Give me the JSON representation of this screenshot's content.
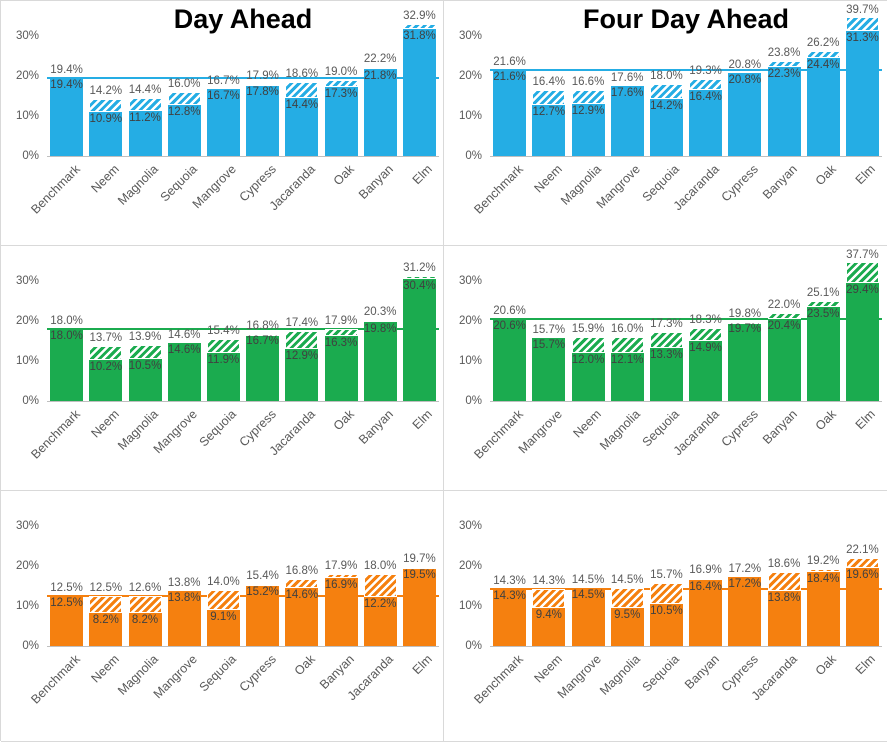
{
  "colors": {
    "blue": "#25ADE4",
    "green": "#1BAB4F",
    "orange": "#F5800F",
    "label_outside": "#595959",
    "label_inside": "#404040",
    "axis_line": "#bfbfbf",
    "panel_border": "#d9d9d9",
    "title_text": "#000000"
  },
  "chart_data": [
    {
      "type": "bar",
      "position": "top-left",
      "title": "Day Ahead",
      "color": "#25ADE4",
      "categories": [
        "Benchmark",
        "Neem",
        "Magnolia",
        "Sequoia",
        "Mangrove",
        "Cypress",
        "Jacaranda",
        "Oak",
        "Banyan",
        "Elm"
      ],
      "series": [
        {
          "name": "solid",
          "values": [
            19.4,
            10.9,
            11.2,
            12.8,
            16.7,
            17.8,
            14.4,
            17.3,
            21.8,
            31.8
          ]
        },
        {
          "name": "hatched-total",
          "values": [
            19.4,
            14.2,
            14.4,
            16.0,
            16.7,
            17.9,
            18.6,
            19.0,
            22.2,
            32.9
          ]
        }
      ],
      "total_labels": [
        "19.4%",
        "14.2%",
        "14.4%",
        "16.0%",
        "16.7%",
        "17.9%",
        "18.6%",
        "19.0%",
        "22.2%",
        "32.9%"
      ],
      "solid_labels": [
        "19.4%",
        "10.9%",
        "11.2%",
        "12.8%",
        "16.7%",
        "17.8%",
        "14.4%",
        "17.3%",
        "21.8%",
        "31.8%"
      ],
      "benchmark_line": 19.4,
      "y_axis": {
        "ticks": [
          0,
          10,
          20,
          30
        ],
        "tick_labels": [
          "0%",
          "10%",
          "20%",
          "30%"
        ],
        "max": 34.5,
        "grid": false
      },
      "legend": null
    },
    {
      "type": "bar",
      "position": "top-right",
      "title": "Four Day Ahead",
      "color": "#25ADE4",
      "categories": [
        "Benchmark",
        "Neem",
        "Magnolia",
        "Mangrove",
        "Sequoia",
        "Jacaranda",
        "Cypress",
        "Banyan",
        "Oak",
        "Elm"
      ],
      "series": [
        {
          "name": "solid",
          "values": [
            21.6,
            12.7,
            12.9,
            17.6,
            14.2,
            16.4,
            20.8,
            22.3,
            24.4,
            31.3
          ]
        },
        {
          "name": "hatched-total",
          "values": [
            21.6,
            16.4,
            16.6,
            17.6,
            18.0,
            19.3,
            20.8,
            23.8,
            26.2,
            39.7
          ]
        }
      ],
      "total_labels": [
        "21.6%",
        "16.4%",
        "16.6%",
        "17.6%",
        "18.0%",
        "19.3%",
        "20.8%",
        "23.8%",
        "26.2%",
        "39.7%"
      ],
      "solid_labels": [
        "21.6%",
        "12.7%",
        "12.9%",
        "17.6%",
        "14.2%",
        "16.4%",
        "20.8%",
        "22.3%",
        "24.4%",
        "31.3%"
      ],
      "benchmark_line": 21.6,
      "y_axis": {
        "ticks": [
          0,
          10,
          20,
          30
        ],
        "tick_labels": [
          "0%",
          "10%",
          "20%",
          "30%"
        ],
        "max": 34.5,
        "grid": false
      },
      "legend": null
    },
    {
      "type": "bar",
      "position": "middle-left",
      "title": null,
      "color": "#1BAB4F",
      "categories": [
        "Benchmark",
        "Neem",
        "Magnolia",
        "Mangrove",
        "Sequoia",
        "Cypress",
        "Jacaranda",
        "Oak",
        "Banyan",
        "Elm"
      ],
      "series": [
        {
          "name": "solid",
          "values": [
            18.0,
            10.2,
            10.5,
            14.6,
            11.9,
            16.7,
            12.9,
            16.3,
            19.8,
            30.4
          ]
        },
        {
          "name": "hatched-total",
          "values": [
            18.0,
            13.7,
            13.9,
            14.6,
            15.4,
            16.8,
            17.4,
            17.9,
            20.3,
            31.2
          ]
        }
      ],
      "total_labels": [
        "18.0%",
        "13.7%",
        "13.9%",
        "14.6%",
        "15.4%",
        "16.8%",
        "17.4%",
        "17.9%",
        "20.3%",
        "31.2%"
      ],
      "solid_labels": [
        "18.0%",
        "10.2%",
        "10.5%",
        "14.6%",
        "11.9%",
        "16.7%",
        "12.9%",
        "16.3%",
        "19.8%",
        "30.4%"
      ],
      "benchmark_line": 18.0,
      "y_axis": {
        "ticks": [
          0,
          10,
          20,
          30
        ],
        "tick_labels": [
          "0%",
          "10%",
          "20%",
          "30%"
        ],
        "max": 34.5,
        "grid": false
      },
      "legend": null
    },
    {
      "type": "bar",
      "position": "middle-right",
      "title": null,
      "color": "#1BAB4F",
      "categories": [
        "Benchmark",
        "Mangrove",
        "Neem",
        "Magnolia",
        "Sequoia",
        "Jacaranda",
        "Cypress",
        "Banyan",
        "Oak",
        "Elm"
      ],
      "series": [
        {
          "name": "solid",
          "values": [
            20.6,
            15.7,
            12.0,
            12.1,
            13.3,
            14.9,
            19.7,
            20.4,
            23.5,
            29.4
          ]
        },
        {
          "name": "hatched-total",
          "values": [
            20.6,
            15.7,
            15.9,
            16.0,
            17.3,
            18.3,
            19.8,
            22.0,
            25.1,
            37.7
          ]
        }
      ],
      "total_labels": [
        "20.6%",
        "15.7%",
        "15.9%",
        "16.0%",
        "17.3%",
        "18.3%",
        "19.8%",
        "22.0%",
        "25.1%",
        "37.7%"
      ],
      "solid_labels": [
        "20.6%",
        "15.7%",
        "12.0%",
        "12.1%",
        "13.3%",
        "14.9%",
        "19.7%",
        "20.4%",
        "23.5%",
        "29.4%"
      ],
      "benchmark_line": 20.6,
      "y_axis": {
        "ticks": [
          0,
          10,
          20,
          30
        ],
        "tick_labels": [
          "0%",
          "10%",
          "20%",
          "30%"
        ],
        "max": 34.5,
        "grid": false
      },
      "legend": null
    },
    {
      "type": "bar",
      "position": "bottom-left",
      "title": null,
      "color": "#F5800F",
      "categories": [
        "Benchmark",
        "Neem",
        "Magnolia",
        "Mangrove",
        "Sequoia",
        "Cypress",
        "Oak",
        "Banyan",
        "Jacaranda",
        "Elm"
      ],
      "series": [
        {
          "name": "solid",
          "values": [
            12.5,
            8.2,
            8.2,
            13.8,
            9.1,
            15.2,
            14.6,
            16.9,
            12.2,
            19.5
          ]
        },
        {
          "name": "hatched-total",
          "values": [
            12.5,
            12.5,
            12.6,
            13.8,
            14.0,
            15.4,
            16.8,
            17.9,
            18.0,
            19.7
          ]
        }
      ],
      "total_labels": [
        "12.5%",
        "12.5%",
        "12.6%",
        "13.8%",
        "14.0%",
        "15.4%",
        "16.8%",
        "17.9%",
        "18.0%",
        "19.7%"
      ],
      "solid_labels": [
        "12.5%",
        "8.2%",
        "8.2%",
        "13.8%",
        "9.1%",
        "15.2%",
        "14.6%",
        "16.9%",
        "12.2%",
        "19.5%"
      ],
      "benchmark_line": 12.5,
      "y_axis": {
        "ticks": [
          0,
          10,
          20,
          30
        ],
        "tick_labels": [
          "0%",
          "10%",
          "20%",
          "30%"
        ],
        "max": 34.5,
        "grid": false
      },
      "legend": null
    },
    {
      "type": "bar",
      "position": "bottom-right",
      "title": null,
      "color": "#F5800F",
      "categories": [
        "Benchmark",
        "Neem",
        "Mangrove",
        "Magnolia",
        "Sequoia",
        "Banyan",
        "Cypress",
        "Jacaranda",
        "Oak",
        "Elm"
      ],
      "series": [
        {
          "name": "solid",
          "values": [
            14.3,
            9.4,
            14.5,
            9.5,
            10.5,
            16.4,
            17.2,
            13.8,
            18.4,
            19.6
          ]
        },
        {
          "name": "hatched-total",
          "values": [
            14.3,
            14.3,
            14.5,
            14.5,
            15.7,
            16.9,
            17.2,
            18.6,
            19.2,
            22.1
          ]
        }
      ],
      "total_labels": [
        "14.3%",
        "14.3%",
        "14.5%",
        "14.5%",
        "15.7%",
        "16.9%",
        "17.2%",
        "18.6%",
        "19.2%",
        "22.1%"
      ],
      "solid_labels": [
        "14.3%",
        "9.4%",
        "14.5%",
        "9.5%",
        "10.5%",
        "16.4%",
        "17.2%",
        "13.8%",
        "18.4%",
        "19.6%"
      ],
      "benchmark_line": 14.3,
      "y_axis": {
        "ticks": [
          0,
          10,
          20,
          30
        ],
        "tick_labels": [
          "0%",
          "10%",
          "20%",
          "30%"
        ],
        "max": 34.5,
        "grid": false
      },
      "legend": null
    }
  ]
}
